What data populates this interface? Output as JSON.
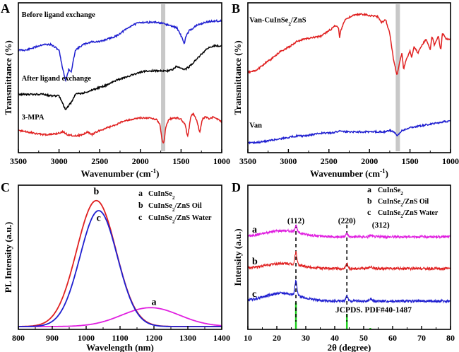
{
  "chart_data": [
    {
      "panel": "A",
      "type": "line",
      "xlabel": "Wavenumber (cm",
      "xlabel_sup": "-1",
      "xlabel_close": ")",
      "ylabel": "Transmittance (%)",
      "xlim": [
        3500,
        1000
      ],
      "xticks": [
        "3500",
        "3000",
        "2500",
        "2000",
        "1500",
        "1000"
      ],
      "highlight_band": 1720,
      "series": [
        {
          "name": "Before ligand exchange",
          "color": "#1f1fd0",
          "label_y": 0.06,
          "label_x": 3460,
          "points": [
            [
              3500,
              0.3
            ],
            [
              3400,
              0.3
            ],
            [
              3300,
              0.28
            ],
            [
              3200,
              0.26
            ],
            [
              3100,
              0.26
            ],
            [
              3000,
              0.3
            ],
            [
              2960,
              0.42
            ],
            [
              2920,
              0.52
            ],
            [
              2880,
              0.44
            ],
            [
              2850,
              0.46
            ],
            [
              2800,
              0.3
            ],
            [
              2700,
              0.26
            ],
            [
              2600,
              0.24
            ],
            [
              2500,
              0.24
            ],
            [
              2400,
              0.22
            ],
            [
              2300,
              0.2
            ],
            [
              2200,
              0.16
            ],
            [
              2100,
              0.12
            ],
            [
              2000,
              0.1
            ],
            [
              1900,
              0.1
            ],
            [
              1800,
              0.1
            ],
            [
              1720,
              0.11
            ],
            [
              1650,
              0.12
            ],
            [
              1600,
              0.13
            ],
            [
              1550,
              0.14
            ],
            [
              1480,
              0.22
            ],
            [
              1460,
              0.26
            ],
            [
              1440,
              0.2
            ],
            [
              1400,
              0.16
            ],
            [
              1350,
              0.14
            ],
            [
              1300,
              0.12
            ],
            [
              1200,
              0.1
            ],
            [
              1100,
              0.09
            ],
            [
              1000,
              0.09
            ]
          ]
        },
        {
          "name": "After ligand exchange",
          "color": "#000000",
          "label_y": 0.52,
          "label_x": 3460,
          "points": [
            [
              3500,
              0.62
            ],
            [
              3400,
              0.62
            ],
            [
              3300,
              0.62
            ],
            [
              3200,
              0.62
            ],
            [
              3100,
              0.63
            ],
            [
              3000,
              0.63
            ],
            [
              2960,
              0.68
            ],
            [
              2920,
              0.73
            ],
            [
              2880,
              0.7
            ],
            [
              2850,
              0.68
            ],
            [
              2800,
              0.62
            ],
            [
              2700,
              0.61
            ],
            [
              2600,
              0.59
            ],
            [
              2500,
              0.57
            ],
            [
              2400,
              0.55
            ],
            [
              2300,
              0.52
            ],
            [
              2200,
              0.5
            ],
            [
              2100,
              0.48
            ],
            [
              2000,
              0.46
            ],
            [
              1900,
              0.45
            ],
            [
              1800,
              0.45
            ],
            [
              1700,
              0.45
            ],
            [
              1650,
              0.45
            ],
            [
              1600,
              0.44
            ],
            [
              1560,
              0.42
            ],
            [
              1500,
              0.43
            ],
            [
              1450,
              0.44
            ],
            [
              1400,
              0.42
            ],
            [
              1300,
              0.36
            ],
            [
              1200,
              0.3
            ],
            [
              1150,
              0.28
            ],
            [
              1100,
              0.27
            ],
            [
              1000,
              0.27
            ]
          ]
        },
        {
          "name": "3-MPA",
          "color": "#e02020",
          "label_y": 0.8,
          "label_x": 3460,
          "points": [
            [
              3500,
              0.88
            ],
            [
              3400,
              0.89
            ],
            [
              3300,
              0.9
            ],
            [
              3200,
              0.91
            ],
            [
              3100,
              0.91
            ],
            [
              3000,
              0.9
            ],
            [
              2950,
              0.89
            ],
            [
              2900,
              0.91
            ],
            [
              2800,
              0.92
            ],
            [
              2700,
              0.91
            ],
            [
              2650,
              0.89
            ],
            [
              2600,
              0.91
            ],
            [
              2500,
              0.88
            ],
            [
              2400,
              0.86
            ],
            [
              2300,
              0.84
            ],
            [
              2200,
              0.81
            ],
            [
              2100,
              0.8
            ],
            [
              2000,
              0.79
            ],
            [
              1900,
              0.79
            ],
            [
              1800,
              0.8
            ],
            [
              1760,
              0.84
            ],
            [
              1730,
              0.96
            ],
            [
              1710,
              0.97
            ],
            [
              1690,
              0.86
            ],
            [
              1650,
              0.8
            ],
            [
              1600,
              0.79
            ],
            [
              1550,
              0.79
            ],
            [
              1500,
              0.8
            ],
            [
              1450,
              0.84
            ],
            [
              1420,
              0.92
            ],
            [
              1400,
              0.86
            ],
            [
              1380,
              0.78
            ],
            [
              1350,
              0.76
            ],
            [
              1300,
              0.82
            ],
            [
              1270,
              0.9
            ],
            [
              1240,
              0.8
            ],
            [
              1200,
              0.78
            ],
            [
              1150,
              0.8
            ],
            [
              1100,
              0.78
            ],
            [
              1050,
              0.8
            ],
            [
              1000,
              0.82
            ]
          ]
        }
      ]
    },
    {
      "panel": "B",
      "type": "line",
      "xlabel": "Wavenumber (cm",
      "xlabel_sup": "-1",
      "xlabel_close": ")",
      "ylabel": "Transmittance (%)",
      "xlim": [
        3500,
        1000
      ],
      "xticks": [
        "3500",
        "3000",
        "2500",
        "2000",
        "1500",
        "1000"
      ],
      "highlight_band": 1650,
      "series": [
        {
          "name": "Van-CuInSe",
          "name_sub": "2",
          "name_tail": "/ZnS",
          "color": "#e02020",
          "label_y": 0.1,
          "label_x": 3480,
          "points": [
            [
              3500,
              0.46
            ],
            [
              3400,
              0.45
            ],
            [
              3300,
              0.4
            ],
            [
              3200,
              0.36
            ],
            [
              3100,
              0.31
            ],
            [
              3000,
              0.28
            ],
            [
              2900,
              0.24
            ],
            [
              2800,
              0.22
            ],
            [
              2700,
              0.21
            ],
            [
              2600,
              0.2
            ],
            [
              2500,
              0.16
            ],
            [
              2450,
              0.14
            ],
            [
              2420,
              0.12
            ],
            [
              2380,
              0.14
            ],
            [
              2370,
              0.22
            ],
            [
              2360,
              0.17
            ],
            [
              2330,
              0.12
            ],
            [
              2300,
              0.08
            ],
            [
              2200,
              0.05
            ],
            [
              2100,
              0.04
            ],
            [
              2000,
              0.05
            ],
            [
              1900,
              0.06
            ],
            [
              1850,
              0.1
            ],
            [
              1800,
              0.08
            ],
            [
              1750,
              0.18
            ],
            [
              1700,
              0.38
            ],
            [
              1660,
              0.48
            ],
            [
              1640,
              0.42
            ],
            [
              1600,
              0.32
            ],
            [
              1580,
              0.44
            ],
            [
              1550,
              0.38
            ],
            [
              1500,
              0.3
            ],
            [
              1480,
              0.36
            ],
            [
              1450,
              0.28
            ],
            [
              1400,
              0.32
            ],
            [
              1350,
              0.26
            ],
            [
              1300,
              0.22
            ],
            [
              1250,
              0.3
            ],
            [
              1230,
              0.2
            ],
            [
              1200,
              0.26
            ],
            [
              1150,
              0.2
            ],
            [
              1120,
              0.3
            ],
            [
              1100,
              0.18
            ],
            [
              1050,
              0.22
            ],
            [
              1000,
              0.22
            ]
          ]
        },
        {
          "name": "Van",
          "color": "#1f1fd0",
          "label_y": 0.86,
          "label_x": 3480,
          "points": [
            [
              3500,
              0.97
            ],
            [
              3400,
              0.97
            ],
            [
              3300,
              0.96
            ],
            [
              3200,
              0.95
            ],
            [
              3100,
              0.94
            ],
            [
              3000,
              0.93
            ],
            [
              2900,
              0.92
            ],
            [
              2800,
              0.92
            ],
            [
              2700,
              0.91
            ],
            [
              2600,
              0.9
            ],
            [
              2500,
              0.9
            ],
            [
              2400,
              0.89
            ],
            [
              2350,
              0.88
            ],
            [
              2300,
              0.89
            ],
            [
              2200,
              0.89
            ],
            [
              2100,
              0.89
            ],
            [
              2000,
              0.89
            ],
            [
              1900,
              0.89
            ],
            [
              1800,
              0.89
            ],
            [
              1750,
              0.88
            ],
            [
              1700,
              0.89
            ],
            [
              1660,
              0.92
            ],
            [
              1640,
              0.91
            ],
            [
              1600,
              0.88
            ],
            [
              1550,
              0.87
            ],
            [
              1500,
              0.86
            ],
            [
              1400,
              0.85
            ],
            [
              1300,
              0.84
            ],
            [
              1200,
              0.83
            ],
            [
              1100,
              0.82
            ],
            [
              1000,
              0.81
            ]
          ]
        }
      ]
    },
    {
      "panel": "C",
      "type": "line",
      "xlabel": "Wavelength (nm)",
      "ylabel": "PL Intensity (a.u.)",
      "xlim": [
        800,
        1400
      ],
      "xticks": [
        "800",
        "900",
        "1000",
        "1100",
        "1200",
        "1300",
        "1400"
      ],
      "legend": [
        {
          "key": "a",
          "text": "CuInSe",
          "sub": "2",
          "tail": ""
        },
        {
          "key": "b",
          "text": "CuInSe",
          "sub": "2",
          "tail": "/ZnS Oil"
        },
        {
          "key": "c",
          "text": "CuInSe",
          "sub": "2",
          "tail": "/ZnS Water"
        }
      ],
      "series": [
        {
          "name": "a",
          "color": "#e020e0",
          "peak_x": 1190,
          "peak_y": 0.15,
          "sigma": 85,
          "label_x": 1200,
          "label_y": 0.17
        },
        {
          "name": "b",
          "color": "#e02020",
          "peak_x": 1030,
          "peak_y": 1.0,
          "sigma": 58,
          "label_x": 1030,
          "label_y": 1.05
        },
        {
          "name": "c",
          "color": "#1f1fd0",
          "peak_x": 1037,
          "peak_y": 0.92,
          "sigma": 55,
          "label_x": 1037,
          "label_y": 0.84
        }
      ]
    },
    {
      "panel": "D",
      "type": "line",
      "xlabel": "2θ (degree)",
      "ylabel": "Intensity (a.u.)",
      "xlim": [
        10,
        80
      ],
      "xticks": [
        "10",
        "20",
        "30",
        "40",
        "50",
        "60",
        "70",
        "80"
      ],
      "peaks": [
        {
          "label": "(112)",
          "x": 26.6
        },
        {
          "label": "(220)",
          "x": 44.2
        },
        {
          "label": "(312)",
          "x": 52.5
        }
      ],
      "reference": {
        "name": "JCPDS. PDF#40-1487",
        "color": "#20d020",
        "lines": [
          [
            26.6,
            0.95
          ],
          [
            44.2,
            0.55
          ],
          [
            52.3,
            0.05
          ]
        ]
      },
      "legend": [
        {
          "key": "a",
          "text": "CuInSe",
          "sub": "2",
          "tail": ""
        },
        {
          "key": "b",
          "text": "CuInSe",
          "sub": "2",
          "tail": "/ZnS Oil"
        },
        {
          "key": "c",
          "text": "CuInSe",
          "sub": "2",
          "tail": "/ZnS Water"
        }
      ],
      "series": [
        {
          "name": "a",
          "color": "#e020e0",
          "baseline": 0.0,
          "bump": 0.22,
          "p112": 0.25,
          "p220": 0.12,
          "p312": 0.05
        },
        {
          "name": "b",
          "color": "#e02020",
          "baseline": 1.0,
          "bump": 0.18,
          "p112": 0.45,
          "p220": 0.18,
          "p312": 0.07
        },
        {
          "name": "c",
          "color": "#1f1fd0",
          "baseline": 2.0,
          "bump": 0.28,
          "p112": 0.5,
          "p220": 0.2,
          "p312": 0.07
        }
      ]
    }
  ],
  "panel_labels": [
    "A",
    "B",
    "C",
    "D"
  ]
}
